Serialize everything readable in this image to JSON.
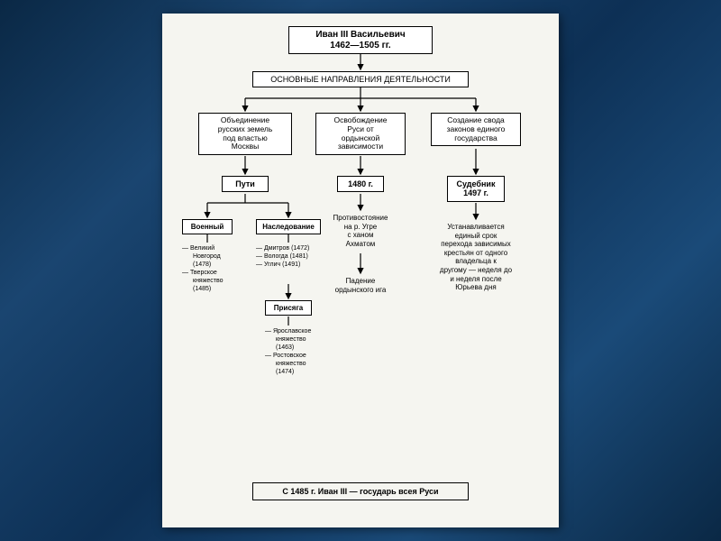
{
  "title": {
    "name": "Иван III Васильевич",
    "years": "1462—1505 гг."
  },
  "main_section": "ОСНОВНЫЕ НАПРАВЛЕНИЯ ДЕЯТЕЛЬНОСТИ",
  "directions": {
    "a": {
      "l1": "Объединение",
      "l2": "русских земель",
      "l3": "под властью",
      "l4": "Москвы"
    },
    "b": {
      "l1": "Освобождение",
      "l2": "Руси от",
      "l3": "ордынской",
      "l4": "зависимости"
    },
    "c": {
      "l1": "Создание свода",
      "l2": "законов единого",
      "l3": "государства"
    }
  },
  "paths": "Пути",
  "path_types": {
    "military": "Военный",
    "inherit": "Наследование",
    "oath": "Присяга"
  },
  "military_list": {
    "i1": "Великий",
    "i1b": "Новгород",
    "i1c": "(1478)",
    "i2": "Тверское",
    "i2b": "княжество",
    "i2c": "(1485)"
  },
  "inherit_list": {
    "i1": "Дмитров (1472)",
    "i2": "Вологда (1481)",
    "i3": "Углич (1491)"
  },
  "oath_list": {
    "i1": "Ярославское",
    "i1b": "княжество",
    "i1c": "(1463)",
    "i2": "Ростовское",
    "i2b": "княжество",
    "i2c": "(1474)"
  },
  "year_1480": "1480 г.",
  "ugra": {
    "l1": "Противостояние",
    "l2": "на р. Угре",
    "l3": "с ханом",
    "l4": "Ахматом"
  },
  "fall": {
    "l1": "Падение",
    "l2": "ордынского ига"
  },
  "sudebnik": {
    "l1": "Судебник",
    "l2": "1497 г."
  },
  "sudebnik_desc": {
    "l1": "Устанавливается",
    "l2": "единый срок",
    "l3": "перехода зависимых",
    "l4": "крестьян от одного",
    "l5": "владельца к",
    "l6": "другому — неделя до",
    "l7": "и неделя после",
    "l8": "Юрьева дня"
  },
  "footer": "С 1485 г. Иван III — государь всея Руси",
  "colors": {
    "ink": "#000000",
    "paper": "#f5f5f0"
  }
}
